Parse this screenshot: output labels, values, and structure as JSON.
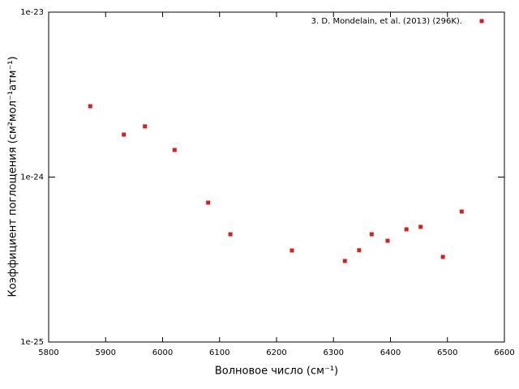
{
  "chart_data": {
    "type": "scatter",
    "xlabel": "Волновое число (см⁻¹)",
    "ylabel": "Коэффициент поглощения (см²мол⁻¹атм⁻¹)",
    "xlim": [
      5800,
      6600
    ],
    "xticks": [
      5800,
      5900,
      6000,
      6100,
      6200,
      6300,
      6400,
      6500,
      6600
    ],
    "ylim": [
      1e-25,
      1e-23
    ],
    "yticks": [
      {
        "value": 1e-25,
        "label": "1e-25"
      },
      {
        "value": 1e-24,
        "label": "1e-24"
      },
      {
        "value": 1e-23,
        "label": "1e-23"
      }
    ],
    "ylog": true,
    "legend": "upper right",
    "series": [
      {
        "name": "3. D. Mondelain, et al. (2013) (296K).",
        "color": "#d62020",
        "x": [
          5873,
          5932,
          5969,
          6021,
          6080,
          6119,
          6227,
          6320,
          6345,
          6367,
          6395,
          6428,
          6453,
          6492,
          6525
        ],
        "values": [
          2.69e-24,
          1.81e-24,
          2.03e-24,
          1.46e-24,
          7e-25,
          4.5e-25,
          3.59e-25,
          3.1e-25,
          3.6e-25,
          4.5e-25,
          4.11e-25,
          4.82e-25,
          4.99e-25,
          3.28e-25,
          6.18e-25
        ]
      }
    ]
  }
}
